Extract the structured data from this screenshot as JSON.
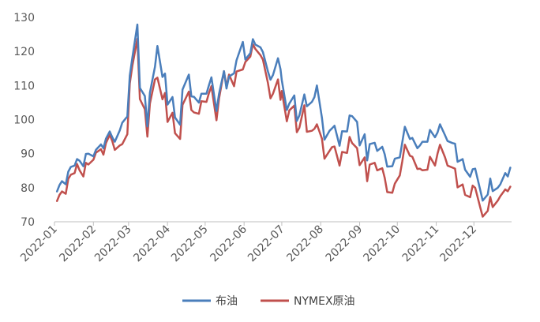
{
  "chart_data": {
    "type": "line",
    "title": "",
    "xlabel": "",
    "ylabel": "",
    "ylim": [
      70,
      130
    ],
    "yticks": [
      70,
      80,
      90,
      100,
      110,
      120,
      130
    ],
    "xticks": [
      "2022-01",
      "2022-02",
      "2022-03",
      "2022-04",
      "2022-05",
      "2022-06",
      "2022-07",
      "2022-08",
      "2022-09",
      "2022-10",
      "2022-11",
      "2022-12"
    ],
    "grid": false,
    "legend_position": "bottom",
    "series": [
      {
        "name": "布油",
        "color": "#4A7EBB",
        "points": [
          [
            "2022-01-03",
            78.9
          ],
          [
            "2022-01-05",
            80.8
          ],
          [
            "2022-01-07",
            81.9
          ],
          [
            "2022-01-10",
            81.0
          ],
          [
            "2022-01-12",
            84.7
          ],
          [
            "2022-01-14",
            86.1
          ],
          [
            "2022-01-17",
            86.5
          ],
          [
            "2022-01-19",
            88.4
          ],
          [
            "2022-01-21",
            87.9
          ],
          [
            "2022-01-24",
            86.3
          ],
          [
            "2022-01-26",
            89.9
          ],
          [
            "2022-01-28",
            90.0
          ],
          [
            "2022-02-01",
            89.2
          ],
          [
            "2022-02-03",
            91.1
          ],
          [
            "2022-02-07",
            92.7
          ],
          [
            "2022-02-09",
            91.6
          ],
          [
            "2022-02-11",
            94.4
          ],
          [
            "2022-02-14",
            96.5
          ],
          [
            "2022-02-16",
            94.8
          ],
          [
            "2022-02-18",
            93.5
          ],
          [
            "2022-02-22",
            96.8
          ],
          [
            "2022-02-24",
            99.1
          ],
          [
            "2022-02-28",
            100.9
          ],
          [
            "2022-03-02",
            112.9
          ],
          [
            "2022-03-04",
            118.1
          ],
          [
            "2022-03-08",
            127.9
          ],
          [
            "2022-03-10",
            109.3
          ],
          [
            "2022-03-14",
            106.9
          ],
          [
            "2022-03-16",
            98.0
          ],
          [
            "2022-03-18",
            107.9
          ],
          [
            "2022-03-22",
            115.5
          ],
          [
            "2022-03-24",
            121.6
          ],
          [
            "2022-03-28",
            112.5
          ],
          [
            "2022-03-30",
            113.5
          ],
          [
            "2022-04-01",
            104.4
          ],
          [
            "2022-04-05",
            106.6
          ],
          [
            "2022-04-07",
            100.6
          ],
          [
            "2022-04-11",
            98.5
          ],
          [
            "2022-04-13",
            108.8
          ],
          [
            "2022-04-18",
            113.2
          ],
          [
            "2022-04-20",
            106.8
          ],
          [
            "2022-04-22",
            106.7
          ],
          [
            "2022-04-26",
            104.99
          ],
          [
            "2022-04-28",
            107.6
          ],
          [
            "2022-05-02",
            107.6
          ],
          [
            "2022-05-04",
            110.1
          ],
          [
            "2022-05-06",
            112.4
          ],
          [
            "2022-05-10",
            102.5
          ],
          [
            "2022-05-12",
            107.5
          ],
          [
            "2022-05-16",
            114.2
          ],
          [
            "2022-05-18",
            109.1
          ],
          [
            "2022-05-20",
            112.6
          ],
          [
            "2022-05-24",
            113.6
          ],
          [
            "2022-05-26",
            117.4
          ],
          [
            "2022-05-31",
            122.8
          ],
          [
            "2022-06-02",
            117.6
          ],
          [
            "2022-06-06",
            119.5
          ],
          [
            "2022-06-08",
            123.6
          ],
          [
            "2022-06-10",
            122.0
          ],
          [
            "2022-06-14",
            121.2
          ],
          [
            "2022-06-16",
            119.8
          ],
          [
            "2022-06-20",
            114.1
          ],
          [
            "2022-06-22",
            111.7
          ],
          [
            "2022-06-24",
            113.1
          ],
          [
            "2022-06-28",
            118.0
          ],
          [
            "2022-06-30",
            114.8
          ],
          [
            "2022-07-01",
            111.6
          ],
          [
            "2022-07-05",
            102.8
          ],
          [
            "2022-07-07",
            104.7
          ],
          [
            "2022-07-11",
            107.1
          ],
          [
            "2022-07-13",
            99.6
          ],
          [
            "2022-07-15",
            101.2
          ],
          [
            "2022-07-19",
            107.4
          ],
          [
            "2022-07-21",
            103.9
          ],
          [
            "2022-07-25",
            105.2
          ],
          [
            "2022-07-27",
            106.6
          ],
          [
            "2022-07-29",
            110.0
          ],
          [
            "2022-08-02",
            100.5
          ],
          [
            "2022-08-04",
            94.1
          ],
          [
            "2022-08-08",
            96.7
          ],
          [
            "2022-08-10",
            97.4
          ],
          [
            "2022-08-12",
            98.2
          ],
          [
            "2022-08-16",
            92.3
          ],
          [
            "2022-08-18",
            96.6
          ],
          [
            "2022-08-22",
            96.5
          ],
          [
            "2022-08-24",
            101.2
          ],
          [
            "2022-08-26",
            100.99
          ],
          [
            "2022-08-30",
            99.3
          ],
          [
            "2022-09-01",
            92.4
          ],
          [
            "2022-09-05",
            95.7
          ],
          [
            "2022-09-07",
            88.0
          ],
          [
            "2022-09-09",
            92.8
          ],
          [
            "2022-09-13",
            93.2
          ],
          [
            "2022-09-15",
            90.8
          ],
          [
            "2022-09-19",
            92.0
          ],
          [
            "2022-09-21",
            89.8
          ],
          [
            "2022-09-23",
            86.2
          ],
          [
            "2022-09-27",
            86.3
          ],
          [
            "2022-09-29",
            88.5
          ],
          [
            "2022-10-03",
            88.9
          ],
          [
            "2022-10-05",
            93.4
          ],
          [
            "2022-10-07",
            97.9
          ],
          [
            "2022-10-11",
            94.3
          ],
          [
            "2022-10-13",
            94.6
          ],
          [
            "2022-10-17",
            91.6
          ],
          [
            "2022-10-19",
            92.4
          ],
          [
            "2022-10-21",
            93.5
          ],
          [
            "2022-10-25",
            93.5
          ],
          [
            "2022-10-27",
            96.96
          ],
          [
            "2022-10-31",
            94.8
          ],
          [
            "2022-11-02",
            96.2
          ],
          [
            "2022-11-04",
            98.6
          ],
          [
            "2022-11-08",
            95.4
          ],
          [
            "2022-11-10",
            93.7
          ],
          [
            "2022-11-14",
            93.1
          ],
          [
            "2022-11-16",
            92.9
          ],
          [
            "2022-11-18",
            87.6
          ],
          [
            "2022-11-22",
            88.4
          ],
          [
            "2022-11-24",
            85.3
          ],
          [
            "2022-11-28",
            83.2
          ],
          [
            "2022-11-30",
            85.4
          ],
          [
            "2022-12-02",
            85.6
          ],
          [
            "2022-12-06",
            79.4
          ],
          [
            "2022-12-08",
            76.2
          ],
          [
            "2022-12-12",
            78.0
          ],
          [
            "2022-12-14",
            82.7
          ],
          [
            "2022-12-16",
            79.0
          ],
          [
            "2022-12-20",
            79.99
          ],
          [
            "2022-12-22",
            80.98
          ],
          [
            "2022-12-26",
            84.3
          ],
          [
            "2022-12-28",
            83.3
          ],
          [
            "2022-12-30",
            85.9
          ]
        ]
      },
      {
        "name": "NYMEX原油",
        "color": "#C0504D",
        "points": [
          [
            "2022-01-03",
            76.1
          ],
          [
            "2022-01-05",
            77.9
          ],
          [
            "2022-01-07",
            78.9
          ],
          [
            "2022-01-10",
            78.2
          ],
          [
            "2022-01-12",
            82.6
          ],
          [
            "2022-01-14",
            83.8
          ],
          [
            "2022-01-17",
            84.3
          ],
          [
            "2022-01-19",
            86.96
          ],
          [
            "2022-01-21",
            85.1
          ],
          [
            "2022-01-24",
            83.3
          ],
          [
            "2022-01-26",
            87.3
          ],
          [
            "2022-01-28",
            86.8
          ],
          [
            "2022-02-01",
            88.2
          ],
          [
            "2022-02-03",
            90.3
          ],
          [
            "2022-02-07",
            91.3
          ],
          [
            "2022-02-09",
            89.7
          ],
          [
            "2022-02-11",
            93.1
          ],
          [
            "2022-02-14",
            95.5
          ],
          [
            "2022-02-16",
            93.7
          ],
          [
            "2022-02-18",
            91.1
          ],
          [
            "2022-02-22",
            92.4
          ],
          [
            "2022-02-24",
            92.8
          ],
          [
            "2022-02-28",
            95.7
          ],
          [
            "2022-03-02",
            110.6
          ],
          [
            "2022-03-04",
            115.7
          ],
          [
            "2022-03-08",
            123.7
          ],
          [
            "2022-03-10",
            106.0
          ],
          [
            "2022-03-14",
            103.0
          ],
          [
            "2022-03-16",
            95.0
          ],
          [
            "2022-03-18",
            104.7
          ],
          [
            "2022-03-22",
            111.8
          ],
          [
            "2022-03-24",
            112.3
          ],
          [
            "2022-03-28",
            105.96
          ],
          [
            "2022-03-30",
            107.8
          ],
          [
            "2022-04-01",
            99.3
          ],
          [
            "2022-04-05",
            102.0
          ],
          [
            "2022-04-07",
            96.0
          ],
          [
            "2022-04-11",
            94.3
          ],
          [
            "2022-04-13",
            104.3
          ],
          [
            "2022-04-18",
            108.2
          ],
          [
            "2022-04-20",
            102.8
          ],
          [
            "2022-04-22",
            102.1
          ],
          [
            "2022-04-26",
            101.7
          ],
          [
            "2022-04-28",
            105.4
          ],
          [
            "2022-05-02",
            105.2
          ],
          [
            "2022-05-04",
            107.8
          ],
          [
            "2022-05-06",
            109.8
          ],
          [
            "2022-05-10",
            99.8
          ],
          [
            "2022-05-12",
            106.1
          ],
          [
            "2022-05-16",
            114.2
          ],
          [
            "2022-05-18",
            109.6
          ],
          [
            "2022-05-20",
            113.2
          ],
          [
            "2022-05-24",
            109.8
          ],
          [
            "2022-05-26",
            114.1
          ],
          [
            "2022-05-31",
            114.7
          ],
          [
            "2022-06-02",
            116.9
          ],
          [
            "2022-06-06",
            118.5
          ],
          [
            "2022-06-08",
            122.1
          ],
          [
            "2022-06-10",
            120.7
          ],
          [
            "2022-06-14",
            118.9
          ],
          [
            "2022-06-16",
            117.6
          ],
          [
            "2022-06-20",
            110.7
          ],
          [
            "2022-06-22",
            106.2
          ],
          [
            "2022-06-24",
            107.6
          ],
          [
            "2022-06-28",
            111.8
          ],
          [
            "2022-06-30",
            105.8
          ],
          [
            "2022-07-01",
            108.4
          ],
          [
            "2022-07-05",
            99.5
          ],
          [
            "2022-07-07",
            102.7
          ],
          [
            "2022-07-11",
            104.1
          ],
          [
            "2022-07-13",
            96.3
          ],
          [
            "2022-07-15",
            97.6
          ],
          [
            "2022-07-19",
            104.2
          ],
          [
            "2022-07-21",
            96.4
          ],
          [
            "2022-07-25",
            96.7
          ],
          [
            "2022-07-27",
            97.3
          ],
          [
            "2022-07-29",
            98.6
          ],
          [
            "2022-08-02",
            94.4
          ],
          [
            "2022-08-04",
            88.5
          ],
          [
            "2022-08-08",
            90.8
          ],
          [
            "2022-08-10",
            91.9
          ],
          [
            "2022-08-12",
            92.1
          ],
          [
            "2022-08-16",
            86.5
          ],
          [
            "2022-08-18",
            90.5
          ],
          [
            "2022-08-22",
            90.2
          ],
          [
            "2022-08-24",
            94.9
          ],
          [
            "2022-08-26",
            93.1
          ],
          [
            "2022-08-30",
            91.6
          ],
          [
            "2022-09-01",
            86.6
          ],
          [
            "2022-09-05",
            88.9
          ],
          [
            "2022-09-07",
            81.9
          ],
          [
            "2022-09-09",
            86.8
          ],
          [
            "2022-09-13",
            87.3
          ],
          [
            "2022-09-15",
            85.1
          ],
          [
            "2022-09-19",
            85.7
          ],
          [
            "2022-09-21",
            82.9
          ],
          [
            "2022-09-23",
            78.7
          ],
          [
            "2022-09-27",
            78.5
          ],
          [
            "2022-09-29",
            81.2
          ],
          [
            "2022-10-03",
            83.6
          ],
          [
            "2022-10-05",
            87.8
          ],
          [
            "2022-10-07",
            92.6
          ],
          [
            "2022-10-11",
            89.4
          ],
          [
            "2022-10-13",
            89.1
          ],
          [
            "2022-10-17",
            85.5
          ],
          [
            "2022-10-19",
            85.6
          ],
          [
            "2022-10-21",
            85.1
          ],
          [
            "2022-10-25",
            85.3
          ],
          [
            "2022-10-27",
            89.1
          ],
          [
            "2022-10-31",
            86.5
          ],
          [
            "2022-11-02",
            90.0
          ],
          [
            "2022-11-04",
            92.6
          ],
          [
            "2022-11-08",
            88.9
          ],
          [
            "2022-11-10",
            86.5
          ],
          [
            "2022-11-14",
            85.9
          ],
          [
            "2022-11-16",
            85.6
          ],
          [
            "2022-11-18",
            80.1
          ],
          [
            "2022-11-22",
            80.95
          ],
          [
            "2022-11-24",
            77.9
          ],
          [
            "2022-11-28",
            77.2
          ],
          [
            "2022-11-30",
            80.6
          ],
          [
            "2022-12-02",
            79.98
          ],
          [
            "2022-12-06",
            74.3
          ],
          [
            "2022-12-08",
            71.5
          ],
          [
            "2022-12-12",
            73.2
          ],
          [
            "2022-12-14",
            77.3
          ],
          [
            "2022-12-16",
            74.3
          ],
          [
            "2022-12-20",
            76.2
          ],
          [
            "2022-12-22",
            77.5
          ],
          [
            "2022-12-26",
            79.5
          ],
          [
            "2022-12-28",
            78.96
          ],
          [
            "2022-12-30",
            80.3
          ]
        ]
      }
    ]
  }
}
